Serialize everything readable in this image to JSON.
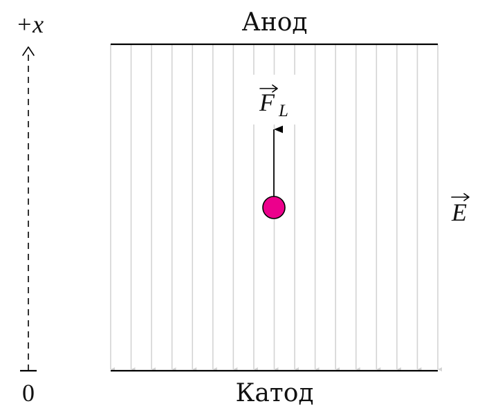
{
  "labels": {
    "anode": "Анод",
    "cathode": "Катод",
    "axis_top": "+x",
    "axis_zero": "0",
    "field_label": "E",
    "force_label": "F",
    "force_subscript": "L"
  },
  "colors": {
    "field_lines": "#d3d3d3",
    "plates": "#000000",
    "particle_fill": "#ec008c",
    "particle_stroke": "#000000",
    "force_arrow": "#000000",
    "axis": "#000000"
  },
  "field": {
    "line_count": 17,
    "direction": "down"
  },
  "icons": {
    "particle": "charged-particle",
    "force": "arrow-up",
    "axis": "dashed-axis-arrow"
  }
}
